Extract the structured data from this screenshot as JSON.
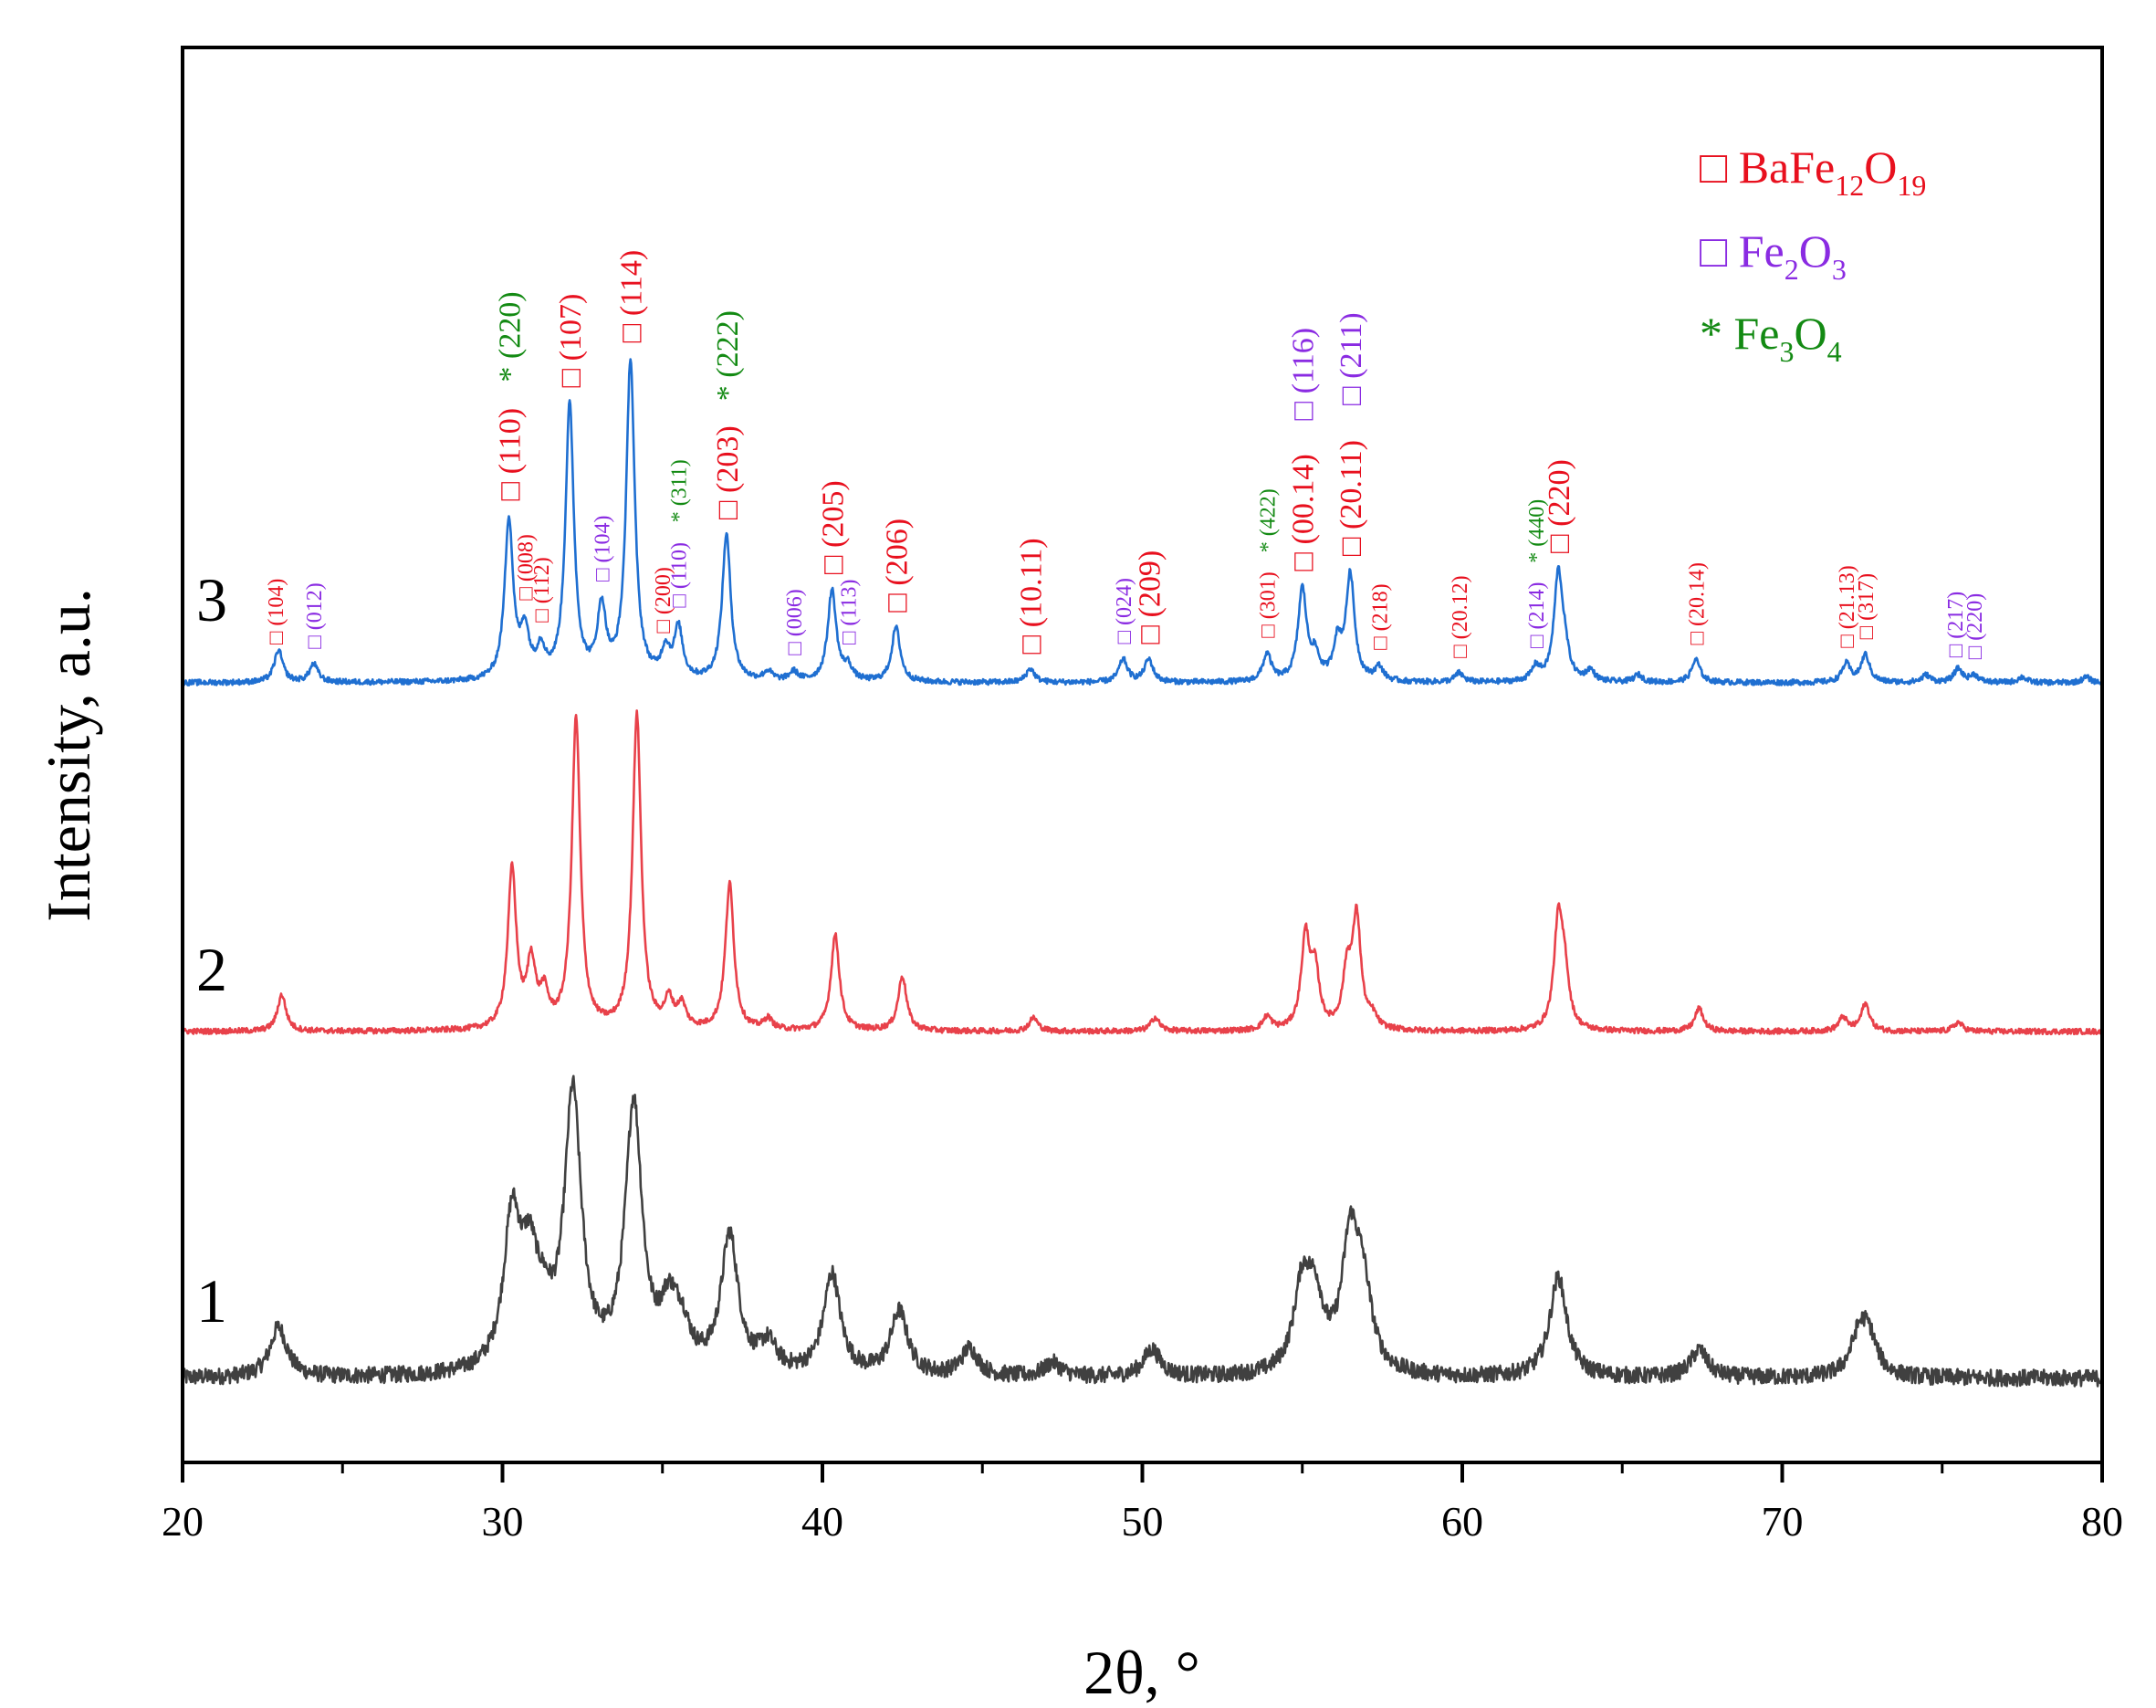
{
  "chart_data": {
    "type": "line",
    "title": "",
    "xlabel": "2θ, °",
    "ylabel": "Intensity, a.u.",
    "xlim": [
      20,
      80
    ],
    "xticks": [
      20,
      30,
      40,
      50,
      60,
      70,
      80
    ],
    "yticks_shown": false,
    "grid": false,
    "legend_position": "top-right",
    "legend": [
      {
        "marker": "□",
        "base": "BaFe",
        "sub1": "12",
        "mid": "O",
        "sub2": "19",
        "color": "#e8101e"
      },
      {
        "marker": "□",
        "base": "Fe",
        "sub1": "2",
        "mid": "O",
        "sub2": "3",
        "color": "#8a2be2"
      },
      {
        "marker": "*",
        "base": "Fe",
        "sub1": "3",
        "mid": "O",
        "sub2": "4",
        "color": "#138a13"
      }
    ],
    "series": [
      {
        "name": "1",
        "color": "#404040",
        "noise": 9,
        "baseline": 0.0,
        "width": 0.32,
        "peaks": [
          [
            23.0,
            55
          ],
          [
            30.3,
            160
          ],
          [
            30.85,
            100
          ],
          [
            31.3,
            40
          ],
          [
            32.2,
            300
          ],
          [
            34.1,
            290
          ],
          [
            35.2,
            60
          ],
          [
            35.6,
            40
          ],
          [
            37.1,
            150
          ],
          [
            38.3,
            30
          ],
          [
            40.3,
            110
          ],
          [
            42.4,
            70
          ],
          [
            44.6,
            30
          ],
          [
            47.2,
            15
          ],
          [
            50.3,
            30
          ],
          [
            55.0,
            90
          ],
          [
            55.4,
            70
          ],
          [
            56.5,
            140
          ],
          [
            56.9,
            80
          ],
          [
            63.0,
            110
          ],
          [
            67.4,
            30
          ],
          [
            72.4,
            40
          ],
          [
            72.7,
            40
          ]
        ]
      },
      {
        "name": "2",
        "color": "#e8414a",
        "noise": 3,
        "baseline": 0.0,
        "width": 0.16,
        "peaks": [
          [
            23.1,
            40
          ],
          [
            30.3,
            175
          ],
          [
            30.9,
            70
          ],
          [
            31.3,
            35
          ],
          [
            32.3,
            340
          ],
          [
            34.2,
            345
          ],
          [
            35.2,
            30
          ],
          [
            35.6,
            25
          ],
          [
            37.1,
            160
          ],
          [
            38.3,
            12
          ],
          [
            40.4,
            105
          ],
          [
            42.5,
            60
          ],
          [
            46.6,
            15
          ],
          [
            50.4,
            15
          ],
          [
            53.9,
            15
          ],
          [
            55.1,
            100
          ],
          [
            55.4,
            60
          ],
          [
            56.4,
            60
          ],
          [
            56.7,
            120
          ],
          [
            57.2,
            12
          ],
          [
            63.0,
            115
          ],
          [
            63.2,
            55
          ],
          [
            67.4,
            25
          ],
          [
            71.9,
            15
          ],
          [
            72.6,
            30
          ],
          [
            75.5,
            10
          ]
        ]
      },
      {
        "name": "3",
        "color": "#1f6fd1",
        "noise": 3,
        "baseline": 0.0,
        "width": 0.16,
        "peaks": [
          [
            23.0,
            35
          ],
          [
            24.1,
            20
          ],
          [
            30.2,
            175
          ],
          [
            30.7,
            50
          ],
          [
            31.2,
            30
          ],
          [
            32.1,
            300
          ],
          [
            33.1,
            75
          ],
          [
            34.0,
            350
          ],
          [
            35.1,
            30
          ],
          [
            35.5,
            55
          ],
          [
            37.0,
            160
          ],
          [
            38.3,
            10
          ],
          [
            39.1,
            10
          ],
          [
            40.3,
            100
          ],
          [
            40.8,
            15
          ],
          [
            42.3,
            60
          ],
          [
            46.5,
            15
          ],
          [
            49.4,
            25
          ],
          [
            50.2,
            25
          ],
          [
            53.9,
            30
          ],
          [
            55.0,
            100
          ],
          [
            55.4,
            25
          ],
          [
            56.5,
            115
          ],
          [
            56.1,
            40
          ],
          [
            57.4,
            15
          ],
          [
            59.9,
            10
          ],
          [
            62.3,
            15
          ],
          [
            63.0,
            115
          ],
          [
            63.2,
            25
          ],
          [
            64.0,
            12
          ],
          [
            65.5,
            8
          ],
          [
            67.3,
            25
          ],
          [
            72.0,
            20
          ],
          [
            72.6,
            30
          ],
          [
            74.5,
            8
          ],
          [
            75.5,
            15
          ],
          [
            76.0,
            8
          ],
          [
            77.5,
            6
          ],
          [
            79.5,
            6
          ]
        ]
      }
    ],
    "annotations": [
      {
        "text": "□ (104)",
        "x": 22.9,
        "series": "3",
        "color": "#e8101e",
        "size": "small"
      },
      {
        "text": "□ (012)",
        "x": 24.1,
        "series": "3",
        "color": "#8a2be2",
        "size": "small"
      },
      {
        "text": "□ (110)",
        "x": 30.2,
        "series": "3",
        "color": "#e8101e",
        "size": "large"
      },
      {
        "text": "* (220)",
        "x": 30.2,
        "series": "3",
        "color": "#138a13",
        "size": "large"
      },
      {
        "text": "□ (008)",
        "x": 30.7,
        "series": "3",
        "color": "#e8101e",
        "size": "small"
      },
      {
        "text": "□ (112)",
        "x": 31.2,
        "series": "3",
        "color": "#e8101e",
        "size": "small"
      },
      {
        "text": "□ (107)",
        "x": 32.1,
        "series": "3",
        "color": "#e8101e",
        "size": "large"
      },
      {
        "text": "□ (104)",
        "x": 33.1,
        "series": "3",
        "color": "#8a2be2",
        "size": "small"
      },
      {
        "text": "□ (114)",
        "x": 34.0,
        "series": "3",
        "color": "#e8101e",
        "size": "large"
      },
      {
        "text": "□ (200)",
        "x": 35.0,
        "series": "3",
        "color": "#e8101e",
        "size": "small"
      },
      {
        "text": "□ (110)",
        "x": 35.5,
        "series": "3",
        "color": "#8a2be2",
        "size": "small"
      },
      {
        "text": "* (311)",
        "x": 35.5,
        "series": "3",
        "color": "#138a13",
        "size": "small"
      },
      {
        "text": "□ (203)",
        "x": 37.0,
        "series": "3",
        "color": "#e8101e",
        "size": "large"
      },
      {
        "text": "* (222)",
        "x": 37.0,
        "series": "3",
        "color": "#138a13",
        "size": "large"
      },
      {
        "text": "□ (006)",
        "x": 39.1,
        "series": "3",
        "color": "#8a2be2",
        "size": "small"
      },
      {
        "text": "□ (205)",
        "x": 40.3,
        "series": "3",
        "color": "#e8101e",
        "size": "large"
      },
      {
        "text": "□ (113)",
        "x": 40.8,
        "series": "3",
        "color": "#8a2be2",
        "size": "small"
      },
      {
        "text": "□ (206)",
        "x": 42.3,
        "series": "3",
        "color": "#e8101e",
        "size": "large"
      },
      {
        "text": "□ (10.11)",
        "x": 46.5,
        "series": "3",
        "color": "#e8101e",
        "size": "large"
      },
      {
        "text": "□ (024)",
        "x": 49.4,
        "series": "3",
        "color": "#8a2be2",
        "size": "small"
      },
      {
        "text": "□ (209)",
        "x": 50.2,
        "series": "3",
        "color": "#e8101e",
        "size": "large"
      },
      {
        "text": "□ (301)",
        "x": 53.9,
        "series": "3",
        "color": "#e8101e",
        "size": "small"
      },
      {
        "text": "* (422)",
        "x": 53.9,
        "series": "3",
        "color": "#138a13",
        "size": "small"
      },
      {
        "text": "□ (00.14)",
        "x": 55.0,
        "series": "3",
        "color": "#e8101e",
        "size": "large"
      },
      {
        "text": "□ (116)",
        "x": 55.0,
        "series": "3",
        "color": "#8a2be2",
        "size": "large"
      },
      {
        "text": "□ (20.11)",
        "x": 56.5,
        "series": "3",
        "color": "#e8101e",
        "size": "large"
      },
      {
        "text": "□ (211)",
        "x": 56.5,
        "series": "3",
        "color": "#8a2be2",
        "size": "large"
      },
      {
        "text": "□ (218)",
        "x": 57.4,
        "series": "3",
        "color": "#e8101e",
        "size": "small"
      },
      {
        "text": "□ (20.12)",
        "x": 59.9,
        "series": "3",
        "color": "#e8101e",
        "size": "small"
      },
      {
        "text": "□ (214)",
        "x": 62.3,
        "series": "3",
        "color": "#8a2be2",
        "size": "small"
      },
      {
        "text": "* (440)",
        "x": 62.3,
        "series": "3",
        "color": "#138a13",
        "size": "small"
      },
      {
        "text": "□ (220)",
        "x": 63.0,
        "series": "3",
        "color": "#e8101e",
        "size": "large"
      },
      {
        "text": "□ (20.14)",
        "x": 67.3,
        "series": "3",
        "color": "#e8101e",
        "size": "small"
      },
      {
        "text": "□ (21.13)",
        "x": 72.0,
        "series": "3",
        "color": "#e8101e",
        "size": "small"
      },
      {
        "text": "□ (317)",
        "x": 72.6,
        "series": "3",
        "color": "#e8101e",
        "size": "small"
      },
      {
        "text": "□ (217)",
        "x": 75.4,
        "series": "3",
        "color": "#8a2be2",
        "size": "small"
      },
      {
        "text": "□ (220)",
        "x": 76.0,
        "series": "3",
        "color": "#8a2be2",
        "size": "small"
      }
    ]
  }
}
